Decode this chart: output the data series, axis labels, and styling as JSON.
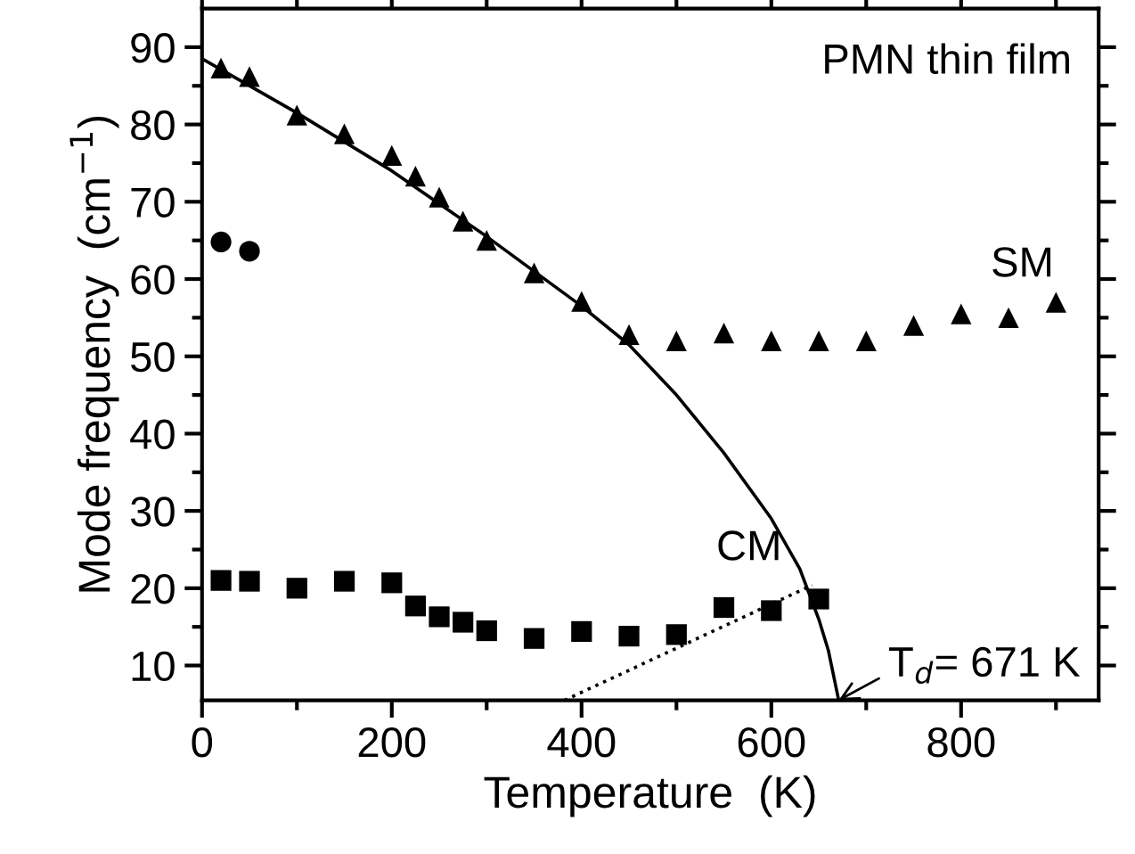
{
  "chart_data": {
    "type": "scatter",
    "xlabel": "Temperature  (K)",
    "ylabel": "Mode frequency  (cm$^{−1}$)",
    "xlim": [
      0,
      945
    ],
    "ylim": [
      5.5,
      95
    ],
    "xticks": [
      0,
      {
        "value": 100,
        "label": null
      },
      200,
      {
        "value": 300,
        "label": null
      },
      400,
      {
        "value": 500,
        "label": null
      },
      600,
      {
        "value": 700,
        "label": null
      },
      800,
      {
        "value": 900,
        "label": null
      }
    ],
    "yticks": [
      10,
      {
        "value": 15,
        "label": null
      },
      20,
      {
        "value": 25,
        "label": null
      },
      30,
      {
        "value": 35,
        "label": null
      },
      40,
      {
        "value": 45,
        "label": null
      },
      50,
      {
        "value": 55,
        "label": null
      },
      60,
      {
        "value": 65,
        "label": null
      },
      70,
      {
        "value": 75,
        "label": null
      },
      80,
      {
        "value": 85,
        "label": null
      },
      90
    ],
    "grid": false,
    "legend": false,
    "series": [
      {
        "marker": "triangle",
        "color": "#000000",
        "x": [
          20,
          50,
          100,
          150,
          200,
          225,
          250,
          275,
          300,
          350,
          400,
          450,
          500,
          550,
          600,
          650,
          700,
          750,
          800,
          850,
          900
        ],
        "values": [
          87.3,
          86.2,
          81.2,
          78.8,
          76,
          73.3,
          70.6,
          67.5,
          65,
          60.8,
          57.1,
          52.8,
          52,
          53,
          52,
          52,
          52,
          54,
          55.5,
          55,
          57
        ]
      },
      {
        "marker": "circle",
        "color": "#000000",
        "x": [
          20,
          50
        ],
        "values": [
          64.8,
          63.6
        ]
      },
      {
        "marker": "square",
        "color": "#000000",
        "x": [
          20,
          50,
          100,
          150,
          200,
          225,
          250,
          275,
          300,
          350,
          400,
          450,
          500,
          550,
          600,
          650
        ],
        "values": [
          21,
          20.9,
          20,
          20.9,
          20.7,
          17.7,
          16.3,
          15.6,
          14.5,
          13.5,
          14.4,
          13.8,
          14,
          17.5,
          17.1,
          18.6
        ]
      },
      {
        "type": "line",
        "line_style": "solid",
        "marker": "none",
        "color": "#000000",
        "x": [
          0,
          100,
          200,
          300,
          400,
          450,
          500,
          550,
          600,
          630,
          650,
          660,
          671
        ],
        "values": [
          88.5,
          81.5,
          74,
          65.5,
          56.5,
          51.5,
          45,
          37.5,
          29,
          22.5,
          16,
          12,
          5.5
        ]
      },
      {
        "type": "line",
        "line_style": "dotted",
        "marker": "none",
        "color": "#000000",
        "x": [
          382,
          643
        ],
        "values": [
          5.5,
          20.4
        ]
      }
    ],
    "annotations": [
      "PMN thin film",
      "SM",
      "CM",
      {
        "text": "T$_{d}$= 671 K",
        "x": 671,
        "y": 5.5
      }
    ]
  }
}
